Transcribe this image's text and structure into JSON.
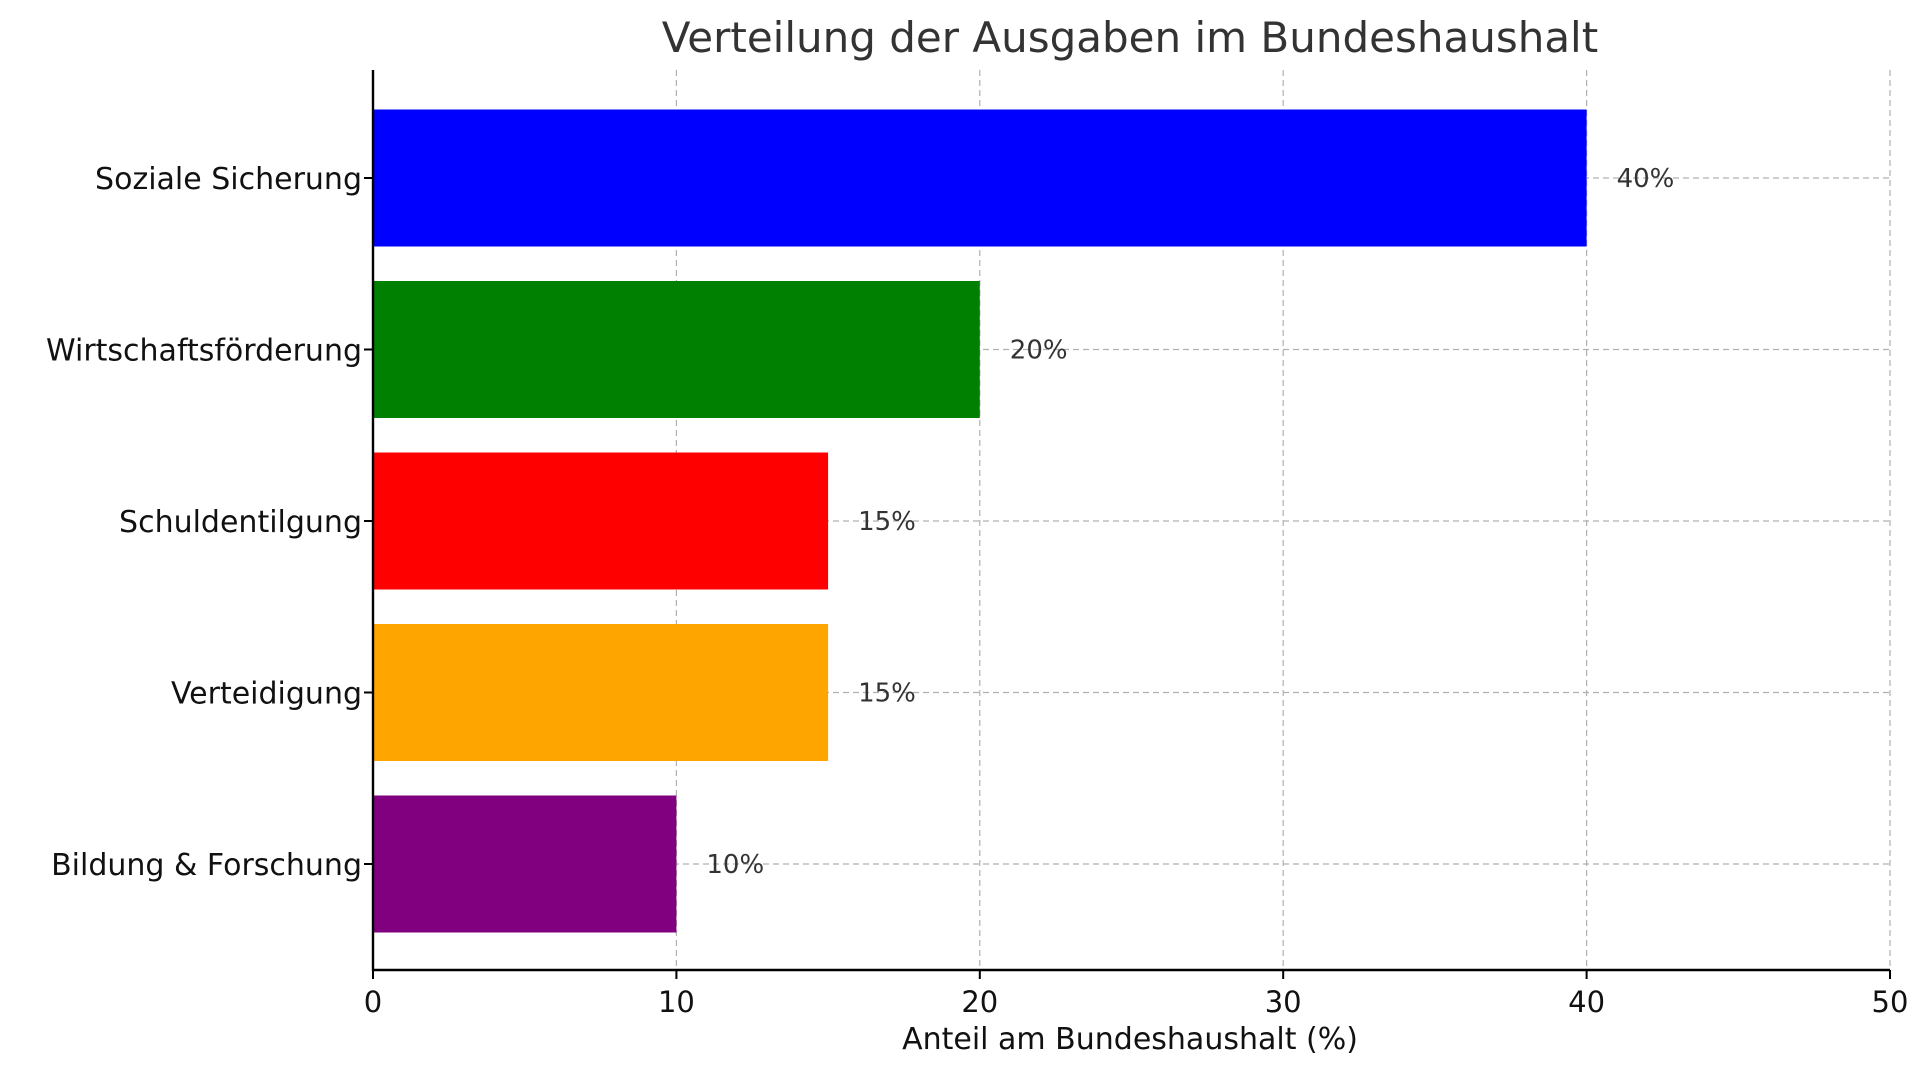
{
  "chart_data": {
    "type": "bar",
    "orientation": "horizontal",
    "title": "Verteilung der Ausgaben im Bundeshaushalt",
    "xlabel": "Anteil am Bundeshaushalt (%)",
    "ylabel": "",
    "categories": [
      "Soziale Sicherung",
      "Wirtschaftsförderung",
      "Schuldentilgung",
      "Verteidigung",
      "Bildung & Forschung"
    ],
    "values": [
      40,
      20,
      15,
      15,
      10
    ],
    "value_labels": [
      "40%",
      "20%",
      "15%",
      "15%",
      "10%"
    ],
    "colors": [
      "#0000ff",
      "#008000",
      "#ff0000",
      "#ffa500",
      "#800080"
    ],
    "xlim": [
      0,
      50
    ],
    "xticks": [
      0,
      10,
      20,
      30,
      40,
      50
    ],
    "xtick_labels": [
      "0",
      "10",
      "20",
      "30",
      "40",
      "50"
    ],
    "grid": true
  }
}
